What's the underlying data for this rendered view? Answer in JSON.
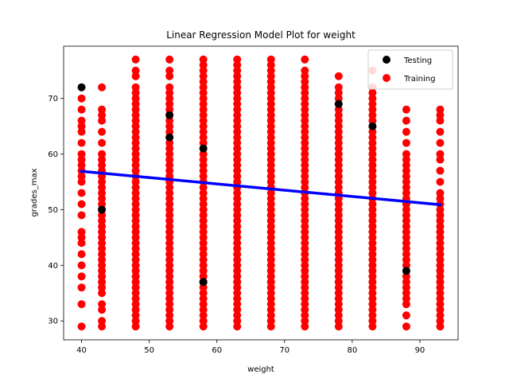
{
  "chart_data": {
    "type": "scatter",
    "title": "Linear Regression Model Plot for weight",
    "xlabel": "weight",
    "ylabel": "grades_max",
    "xlim": [
      37.35,
      95.65
    ],
    "ylim": [
      26.6,
      79.4
    ],
    "xticks": [
      40,
      50,
      60,
      70,
      80,
      90
    ],
    "yticks": [
      30,
      40,
      50,
      60,
      70
    ],
    "grid": false,
    "legend": {
      "position": "top-right",
      "entries": [
        "Testing",
        "Training"
      ]
    },
    "series": [
      {
        "name": "Training",
        "color": "#ff0000",
        "marker": "circle",
        "columns": [
          {
            "x": 40,
            "y": [
              29,
              33,
              36,
              38,
              40,
              42,
              44,
              45,
              46,
              49,
              51,
              53,
              55,
              56,
              57,
              58,
              59,
              60,
              62,
              64,
              65,
              66,
              68,
              70
            ]
          },
          {
            "x": 43,
            "y": [
              29,
              30,
              32,
              33,
              35,
              36,
              37,
              38,
              39,
              40,
              41,
              42,
              43,
              44,
              45,
              46,
              47,
              48,
              49,
              50,
              51,
              52,
              53,
              54,
              55,
              56,
              57,
              58,
              59,
              60,
              62,
              64,
              66,
              67,
              68,
              72
            ]
          },
          {
            "x": 48,
            "y": [
              29,
              30,
              31,
              32,
              33,
              34,
              35,
              36,
              37,
              38,
              39,
              40,
              41,
              42,
              43,
              44,
              45,
              46,
              47,
              48,
              49,
              50,
              51,
              52,
              53,
              54,
              55,
              56,
              57,
              58,
              59,
              60,
              61,
              62,
              63,
              64,
              65,
              66,
              67,
              68,
              69,
              70,
              71,
              72,
              74,
              75,
              77
            ]
          },
          {
            "x": 53,
            "y": [
              29,
              30,
              31,
              32,
              33,
              34,
              35,
              36,
              37,
              38,
              39,
              40,
              41,
              42,
              43,
              44,
              45,
              46,
              47,
              48,
              49,
              50,
              51,
              52,
              53,
              54,
              55,
              56,
              57,
              58,
              59,
              60,
              61,
              62,
              63,
              64,
              65,
              66,
              67,
              68,
              69,
              70,
              71,
              72,
              74,
              75,
              77
            ]
          },
          {
            "x": 58,
            "y": [
              29,
              30,
              31,
              32,
              33,
              34,
              35,
              36,
              37,
              38,
              39,
              40,
              41,
              42,
              43,
              44,
              45,
              46,
              47,
              48,
              49,
              50,
              51,
              52,
              53,
              54,
              55,
              56,
              57,
              58,
              59,
              60,
              61,
              62,
              63,
              64,
              65,
              66,
              67,
              68,
              69,
              70,
              71,
              72,
              73,
              74,
              75,
              76,
              77
            ]
          },
          {
            "x": 63,
            "y": [
              29,
              30,
              31,
              32,
              33,
              34,
              35,
              36,
              37,
              38,
              39,
              40,
              41,
              42,
              43,
              44,
              45,
              46,
              47,
              48,
              49,
              50,
              51,
              52,
              53,
              54,
              55,
              56,
              57,
              58,
              59,
              60,
              61,
              62,
              63,
              64,
              65,
              66,
              67,
              68,
              69,
              70,
              71,
              72,
              73,
              74,
              75,
              76,
              77
            ]
          },
          {
            "x": 68,
            "y": [
              29,
              30,
              31,
              32,
              33,
              34,
              35,
              36,
              37,
              38,
              39,
              40,
              41,
              42,
              43,
              44,
              45,
              46,
              47,
              48,
              49,
              50,
              51,
              52,
              53,
              54,
              55,
              56,
              57,
              58,
              59,
              60,
              61,
              62,
              63,
              64,
              65,
              66,
              67,
              68,
              69,
              70,
              71,
              72,
              73,
              74,
              75,
              76,
              77
            ]
          },
          {
            "x": 73,
            "y": [
              29,
              30,
              31,
              32,
              33,
              34,
              35,
              36,
              37,
              38,
              39,
              40,
              41,
              42,
              43,
              44,
              45,
              46,
              47,
              48,
              49,
              50,
              51,
              52,
              53,
              54,
              55,
              56,
              57,
              58,
              59,
              60,
              61,
              62,
              63,
              64,
              65,
              66,
              67,
              68,
              69,
              70,
              71,
              72,
              73,
              74,
              75,
              77
            ]
          },
          {
            "x": 78,
            "y": [
              29,
              30,
              31,
              32,
              33,
              34,
              35,
              36,
              37,
              38,
              39,
              40,
              41,
              42,
              43,
              44,
              45,
              46,
              47,
              48,
              49,
              50,
              51,
              52,
              53,
              54,
              55,
              56,
              57,
              58,
              59,
              60,
              61,
              62,
              63,
              64,
              65,
              66,
              67,
              68,
              69,
              70,
              71,
              72,
              74
            ]
          },
          {
            "x": 83,
            "y": [
              29,
              30,
              31,
              32,
              33,
              34,
              35,
              36,
              37,
              38,
              39,
              40,
              41,
              42,
              43,
              44,
              45,
              46,
              47,
              48,
              49,
              50,
              51,
              52,
              53,
              54,
              55,
              56,
              57,
              58,
              59,
              60,
              61,
              62,
              63,
              64,
              65,
              66,
              67,
              68,
              69,
              70,
              71,
              72,
              75
            ]
          },
          {
            "x": 88,
            "y": [
              29,
              31,
              33,
              34,
              35,
              36,
              37,
              38,
              40,
              41,
              42,
              43,
              44,
              45,
              46,
              47,
              48,
              49,
              50,
              51,
              52,
              53,
              54,
              55,
              56,
              57,
              58,
              59,
              60,
              62,
              64,
              66,
              68
            ]
          },
          {
            "x": 93,
            "y": [
              29,
              30,
              31,
              32,
              33,
              34,
              35,
              36,
              37,
              38,
              39,
              40,
              41,
              42,
              43,
              44,
              45,
              46,
              47,
              48,
              49,
              50,
              51,
              52,
              53,
              55,
              57,
              59,
              60,
              62,
              64,
              66,
              67,
              68
            ]
          }
        ]
      },
      {
        "name": "Testing",
        "color": "#000000",
        "marker": "circle",
        "points": [
          {
            "x": 40,
            "y": 72
          },
          {
            "x": 43,
            "y": 50
          },
          {
            "x": 53,
            "y": 67
          },
          {
            "x": 53,
            "y": 63
          },
          {
            "x": 58,
            "y": 61
          },
          {
            "x": 58,
            "y": 37
          },
          {
            "x": 78,
            "y": 69
          },
          {
            "x": 83,
            "y": 65
          },
          {
            "x": 88,
            "y": 39
          }
        ]
      }
    ],
    "regression_line": {
      "color": "#0000ff",
      "points": [
        {
          "x": 40,
          "y": 56.9
        },
        {
          "x": 93,
          "y": 50.9
        }
      ]
    }
  }
}
